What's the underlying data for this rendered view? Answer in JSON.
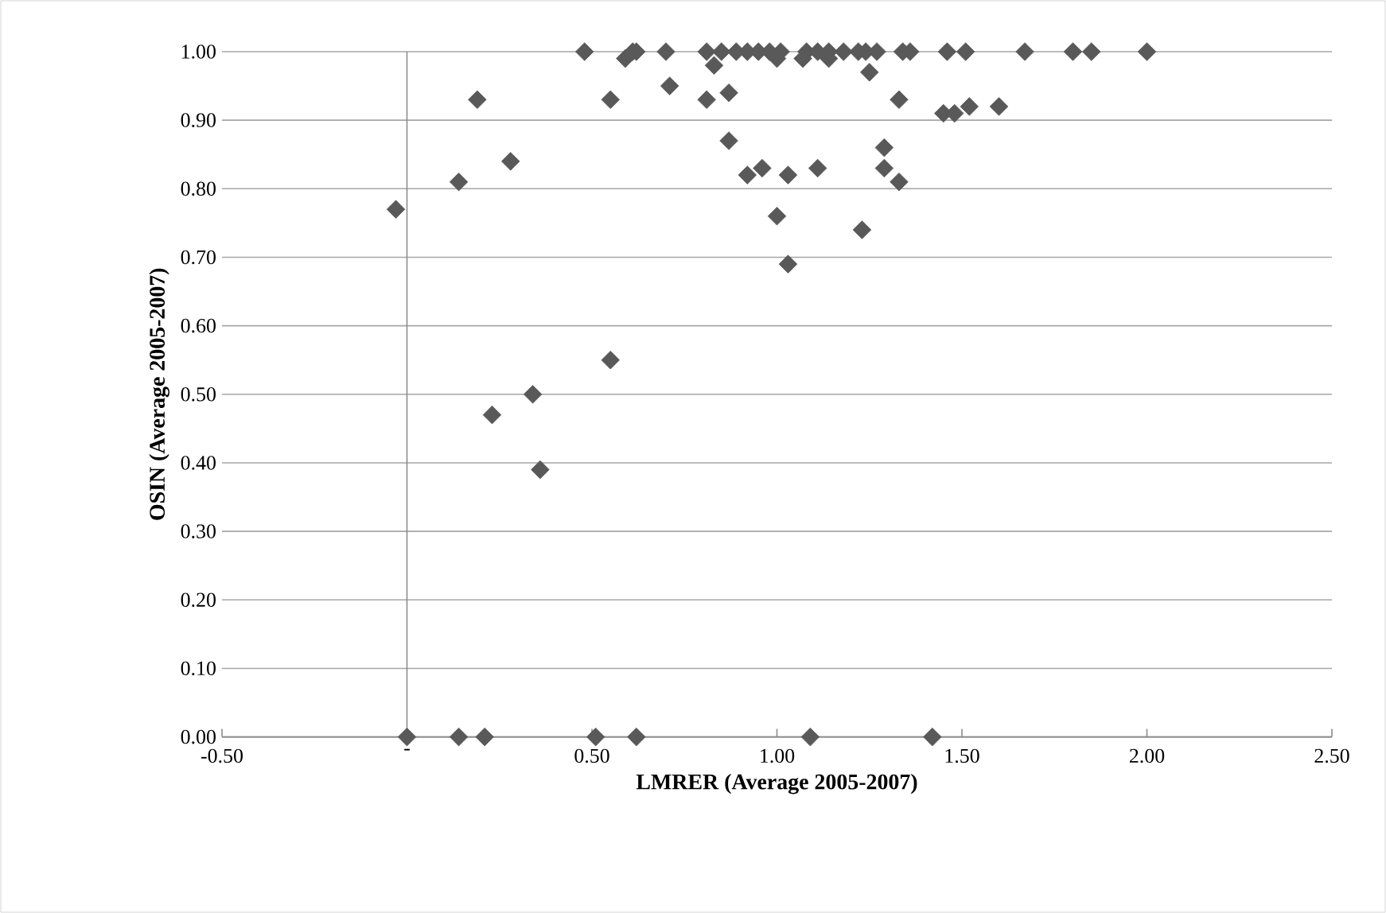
{
  "chart_data": {
    "type": "scatter",
    "xlabel": "LMRER (Average 2005-2007)",
    "ylabel": "OSIN (Average 2005-2007)",
    "xlim": [
      -0.5,
      2.5
    ],
    "ylim": [
      0,
      1
    ],
    "xticks": [
      {
        "value": -0.5,
        "label": "-0.50"
      },
      {
        "value": 0,
        "label": "-"
      },
      {
        "value": 0.5,
        "label": "0.50"
      },
      {
        "value": 1,
        "label": "1.00"
      },
      {
        "value": 1.5,
        "label": "1.50"
      },
      {
        "value": 2,
        "label": "2.00"
      },
      {
        "value": 2.5,
        "label": "2.50"
      }
    ],
    "yticks": [
      {
        "value": 0,
        "label": "0.00"
      },
      {
        "value": 0.1,
        "label": "0.10"
      },
      {
        "value": 0.2,
        "label": "0.20"
      },
      {
        "value": 0.3,
        "label": "0.30"
      },
      {
        "value": 0.4,
        "label": "0.40"
      },
      {
        "value": 0.5,
        "label": "0.50"
      },
      {
        "value": 0.6,
        "label": "0.60"
      },
      {
        "value": 0.7,
        "label": "0.70"
      },
      {
        "value": 0.8,
        "label": "0.80"
      },
      {
        "value": 0.9,
        "label": "0.90"
      },
      {
        "value": 1,
        "label": "1.00"
      }
    ],
    "grid": "y",
    "marker": "diamond",
    "series": [
      {
        "color": "#595959",
        "x": [
          0.0,
          0.14,
          0.21,
          0.51,
          0.62,
          1.09,
          1.42,
          -0.03,
          0.14,
          0.19,
          0.28,
          0.23,
          0.34,
          0.36,
          0.55,
          0.48,
          0.55,
          0.59,
          0.61,
          0.62,
          0.7,
          0.71,
          0.81,
          0.87,
          0.87,
          0.92,
          0.81,
          0.83,
          0.85,
          0.89,
          0.92,
          0.95,
          0.98,
          1.01,
          1.08,
          1.11,
          1.14,
          1.18,
          1.22,
          1.24,
          1.27,
          1.34,
          1.36,
          1.46,
          1.51,
          1.67,
          1.8,
          1.85,
          2.0,
          1.25,
          1.33,
          1.45,
          1.48,
          1.52,
          1.6,
          0.96,
          1.03,
          1.11,
          1.29,
          1.29,
          1.33,
          1.0,
          1.23,
          1.03,
          1.0,
          1.07,
          1.14
        ],
        "values": [
          0.0,
          0.0,
          0.0,
          0.0,
          0.0,
          0.0,
          0.0,
          0.77,
          0.81,
          0.93,
          0.84,
          0.47,
          0.5,
          0.39,
          0.55,
          1.0,
          0.93,
          0.99,
          1.0,
          1.0,
          1.0,
          0.95,
          0.93,
          0.94,
          0.87,
          0.82,
          1.0,
          0.98,
          1.0,
          1.0,
          1.0,
          1.0,
          1.0,
          1.0,
          1.0,
          1.0,
          1.0,
          1.0,
          1.0,
          1.0,
          1.0,
          1.0,
          1.0,
          1.0,
          1.0,
          1.0,
          1.0,
          1.0,
          1.0,
          0.97,
          0.93,
          0.91,
          0.91,
          0.92,
          0.92,
          0.83,
          0.82,
          0.83,
          0.86,
          0.83,
          0.81,
          0.76,
          0.74,
          0.69,
          0.99,
          0.99,
          0.99
        ]
      }
    ]
  }
}
